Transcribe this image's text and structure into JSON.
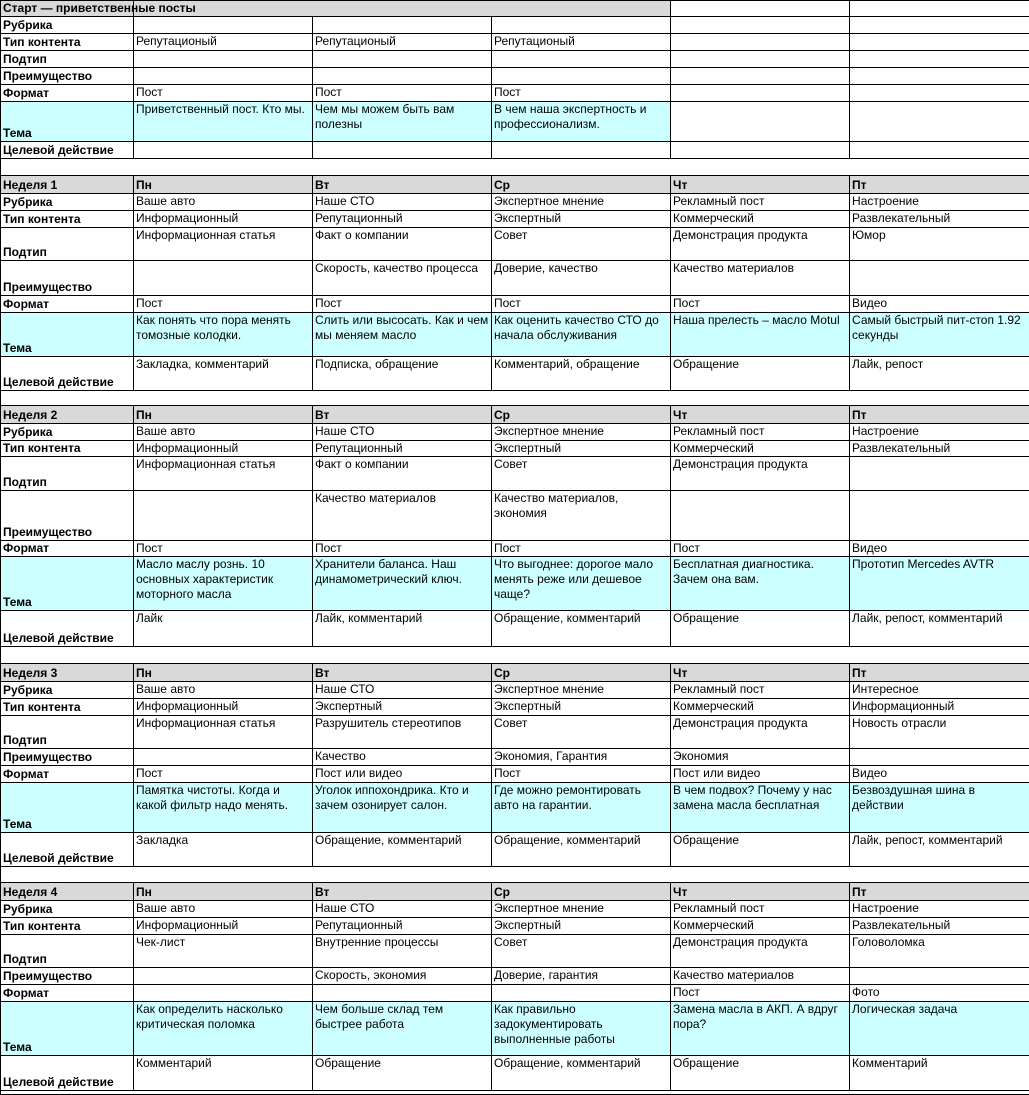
{
  "row_labels": [
    "Рубрика",
    "Тип контента",
    "Подтип",
    "Преимущество",
    "Формат",
    "Тема",
    "Целевой действие"
  ],
  "colors": {
    "header_bg": "#d9d9d9",
    "tema_bg": "#ccffff"
  },
  "sections": [
    {
      "title": "Старт — приветственные посты",
      "days": [
        "",
        "",
        ""
      ],
      "cols": 3,
      "rows": [
        [
          "",
          "",
          ""
        ],
        [
          "Репутационый",
          "Репутационый",
          "Репутационый"
        ],
        [
          "",
          "",
          ""
        ],
        [
          "",
          "",
          ""
        ],
        [
          "Пост",
          "Пост",
          "Пост"
        ],
        [
          "Приветственный пост. Кто мы.",
          "Чем мы можем быть вам полезны",
          "В чем наша экспертность и профессионализм."
        ],
        [
          "",
          "",
          ""
        ]
      ]
    },
    {
      "title": "Неделя 1",
      "days": [
        "Пн",
        "Вт",
        "Ср",
        "Чт",
        "Пт"
      ],
      "cols": 5,
      "rows": [
        [
          "Ваше авто",
          "Наше СТО",
          "Экспертное мнение",
          "Рекламный пост",
          "Настроение"
        ],
        [
          "Информационный",
          "Репутационный",
          "Экспертный",
          "Коммерческий",
          "Развлекательный"
        ],
        [
          "Информационная статья",
          "Факт о компании",
          "Совет",
          "Демонстрация продукта",
          "Юмор"
        ],
        [
          "",
          "Скорость, качество процесса",
          "Доверие, качество",
          "Качество материалов",
          ""
        ],
        [
          "Пост",
          "Пост",
          "Пост",
          "Пост",
          "Видео"
        ],
        [
          "Как понять что пора менять томозные колодки.",
          "Слить или высосать. Как и чем мы меняем масло",
          "Как оценить качество СТО до начала обслуживания",
          "Наша прелесть – масло Motul",
          "Самый быстрый пит-стоп 1.92 секунды"
        ],
        [
          "Закладка, комментарий",
          "Подписка, обращение",
          "Комментарий, обращение",
          "Обращение",
          "Лайк, репост"
        ]
      ]
    },
    {
      "title": "Неделя 2",
      "days": [
        "Пн",
        "Вт",
        "Ср",
        "Чт",
        "Пт"
      ],
      "cols": 5,
      "rows": [
        [
          "Ваше авто",
          "Наше СТО",
          "Экспертное мнение",
          "Рекламный пост",
          "Настроение"
        ],
        [
          "Информационный",
          "Репутационный",
          "Экспертный",
          "Коммерческий",
          "Развлекательный"
        ],
        [
          "Информационная статья",
          "Факт о компании",
          "Совет",
          "Демонстрация продукта",
          ""
        ],
        [
          "",
          "Качество материалов",
          "Качество материалов, экономия",
          "",
          ""
        ],
        [
          "Пост",
          "Пост",
          "Пост",
          "Пост",
          "Видео"
        ],
        [
          "Масло маслу рознь. 10 основных характеристик моторного масла",
          "Хранители баланса. Наш динамометрический ключ.",
          "Что выгоднее: дорогое мало менять реже или дешевое чаще?",
          "Бесплатная диагностика. Зачем она вам.",
          "Прототип Mercedes AVTR"
        ],
        [
          "Лайк",
          "Лайк, комментарий",
          "Обращение, комментарий",
          "Обращение",
          "Лайк, репост, комментарий"
        ]
      ]
    },
    {
      "title": "Неделя 3",
      "days": [
        "Пн",
        "Вт",
        "Ср",
        "Чт",
        "Пт"
      ],
      "cols": 5,
      "rows": [
        [
          "Ваше авто",
          "Наше СТО",
          "Экспертное мнение",
          "Рекламный пост",
          "Интересное"
        ],
        [
          "Информационный",
          "Экспертный",
          "Экспертный",
          "Коммерческий",
          "Информационный"
        ],
        [
          "Информационная статья",
          "Разрушитель стереотипов",
          "Совет",
          "Демонстрация продукта",
          "Новость отрасли"
        ],
        [
          "",
          "Качество",
          "Экономия, Гарантия",
          "Экономия",
          ""
        ],
        [
          "Пост",
          "Пост или видео",
          "Пост",
          "Пост или видео",
          "Видео"
        ],
        [
          "Памятка чистоты. Когда и какой фильтр надо менять.",
          "Уголок иппохондрика. Кто и зачем озонирует салон.",
          "Где можно ремонтировать авто на гарантии.",
          "В чем подвох? Почему у нас замена масла бесплатная",
          "Безвоздушная шина в действии"
        ],
        [
          "Закладка",
          "Обращение, комментарий",
          "Обращение, комментарий",
          "Обращение",
          "Лайк, репост, комментарий"
        ]
      ]
    },
    {
      "title": "Неделя 4",
      "days": [
        "Пн",
        "Вт",
        "Ср",
        "Чт",
        "Пт"
      ],
      "cols": 5,
      "rows": [
        [
          "Ваше авто",
          "Наше СТО",
          "Экспертное мнение",
          "Рекламный пост",
          "Настроение"
        ],
        [
          "Информационный",
          "Репутационный",
          "Экспертный",
          "Коммерческий",
          "Развлекательный"
        ],
        [
          "Чек-лист",
          "Внутренние процессы",
          "Совет",
          "Демонстрация продукта",
          "Головоломка"
        ],
        [
          "",
          "Скорость, экономия",
          "Доверие, гарантия",
          "Качество материалов",
          ""
        ],
        [
          "",
          "",
          "",
          "Пост",
          "Фото"
        ],
        [
          "Как определить насколько критическая поломка",
          "Чем больше склад тем быстрее работа",
          "Как правильно задокументировать выполненные работы",
          "Замена масла в АКП. А вдруг пора?",
          "Логическая задача"
        ],
        [
          "Комментарий",
          "Обращение",
          "Обращение, комментарий",
          "Обращение",
          "Комментарий"
        ]
      ]
    }
  ]
}
